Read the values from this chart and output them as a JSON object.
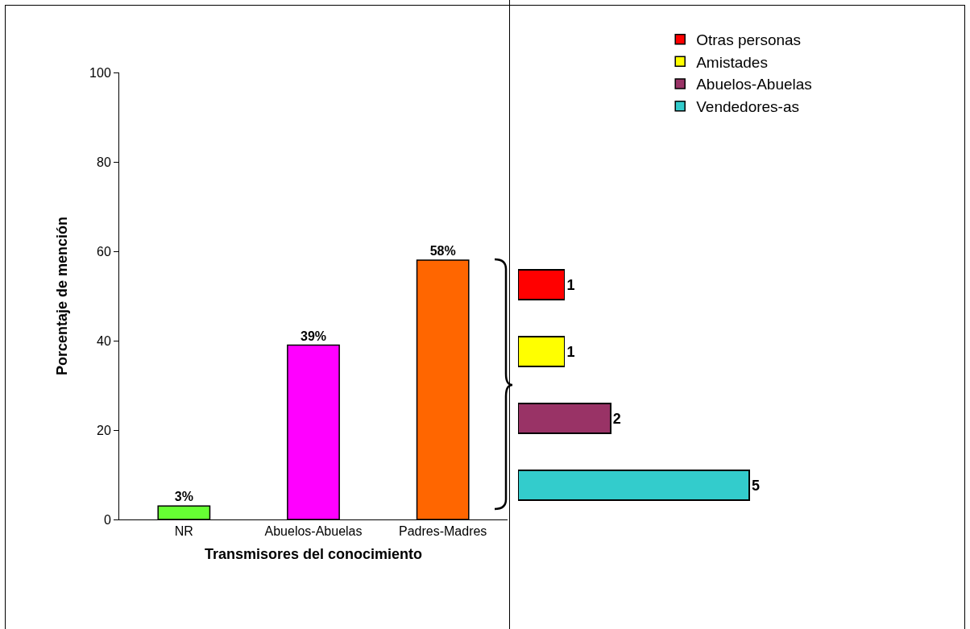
{
  "chart_data": [
    {
      "type": "bar",
      "categories": [
        "NR",
        "Abuelos-Abuelas",
        "Padres-Madres"
      ],
      "values": [
        3,
        39,
        58
      ],
      "colors": [
        "#66ff33",
        "#ff00ff",
        "#ff6600"
      ],
      "value_labels": [
        "3%",
        "39%",
        "58%"
      ],
      "ylim": [
        0,
        100
      ],
      "yticks": [
        0,
        20,
        40,
        60,
        80,
        100
      ],
      "xlabel": "Transmisores del conocimiento",
      "ylabel": "Porcentaje de mención"
    },
    {
      "type": "bar",
      "orientation": "horizontal",
      "categories": [
        null,
        null,
        null,
        null
      ],
      "data_labels": true,
      "stacked": true,
      "legend": "top",
      "series": [
        {
          "name": "Vendedores-as",
          "color": "#33cccc",
          "values": [
            null,
            null,
            null,
            5
          ]
        },
        {
          "name": "Abuelos-Abuelas",
          "color": "#993366",
          "values": [
            null,
            null,
            2,
            null
          ]
        },
        {
          "name": "Amistades",
          "color": "#ffff00",
          "values": [
            null,
            1,
            null,
            null
          ]
        },
        {
          "name": "Otras personas",
          "color": "#ff0000",
          "values": [
            1,
            null,
            null,
            null
          ]
        }
      ]
    }
  ]
}
